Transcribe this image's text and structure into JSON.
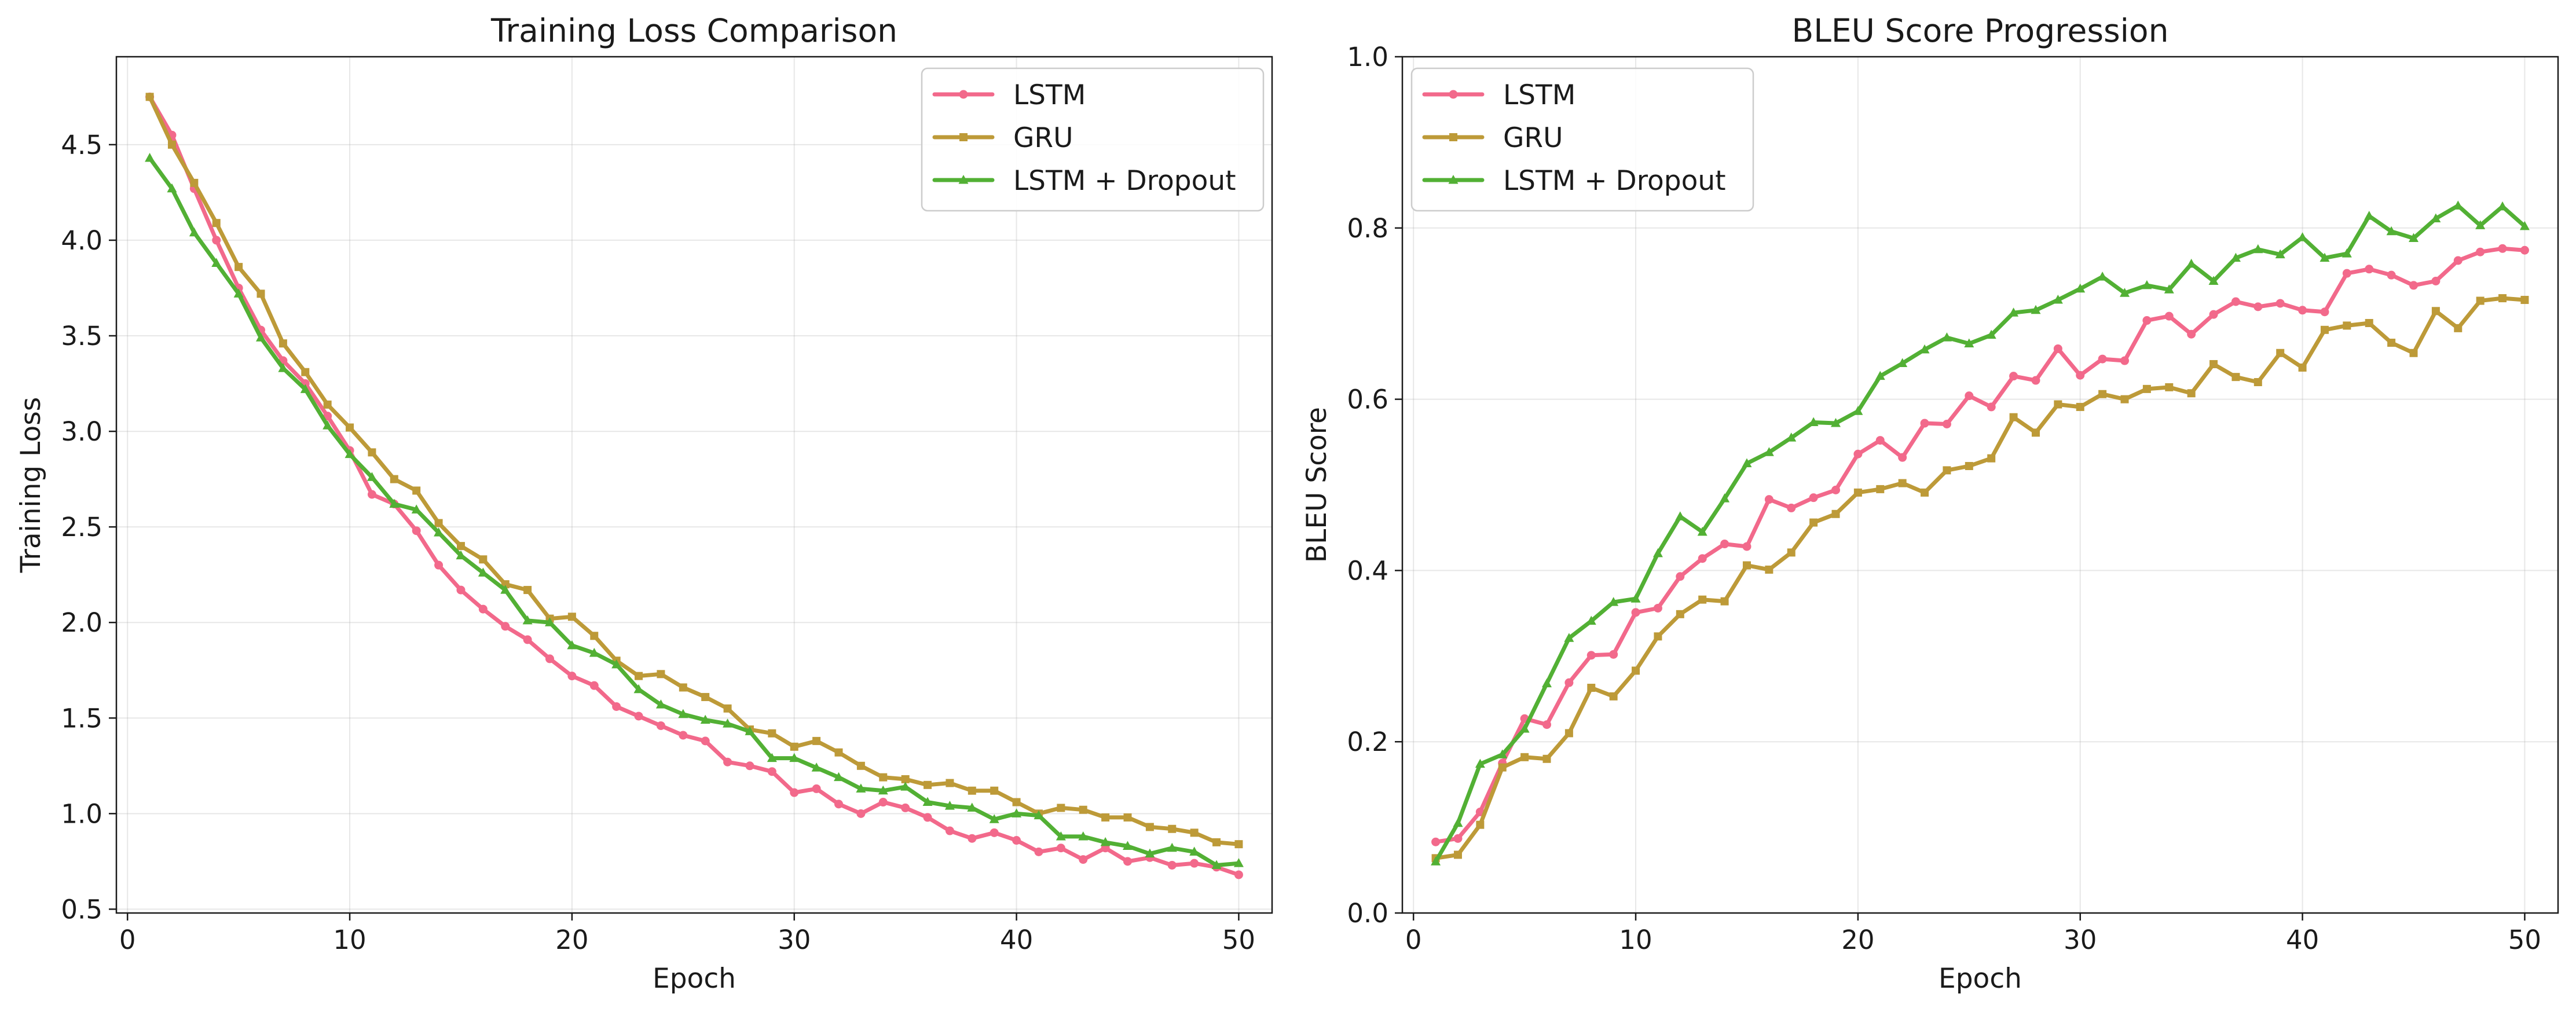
{
  "chart_data": [
    {
      "type": "line",
      "title": "Training Loss Comparison",
      "xlabel": "Epoch",
      "ylabel": "Training Loss",
      "xlim": [
        -0.5,
        51.5
      ],
      "ylim": [
        0.48,
        4.96
      ],
      "xticks": [
        0,
        10,
        20,
        30,
        40,
        50
      ],
      "yticks": [
        0.5,
        1.0,
        1.5,
        2.0,
        2.5,
        3.0,
        3.5,
        4.0,
        4.5
      ],
      "tick_decimals": 1,
      "grid": true,
      "legend": "upper right",
      "x": [
        1,
        2,
        3,
        4,
        5,
        6,
        7,
        8,
        9,
        10,
        11,
        12,
        13,
        14,
        15,
        16,
        17,
        18,
        19,
        20,
        21,
        22,
        23,
        24,
        25,
        26,
        27,
        28,
        29,
        30,
        31,
        32,
        33,
        34,
        35,
        36,
        37,
        38,
        39,
        40,
        41,
        42,
        43,
        44,
        45,
        46,
        47,
        48,
        49,
        50
      ],
      "series": [
        {
          "name": "LSTM",
          "color": "#f2698b",
          "marker": "circle",
          "values": [
            4.75,
            4.55,
            4.27,
            4.0,
            3.75,
            3.53,
            3.37,
            3.25,
            3.08,
            2.9,
            2.67,
            2.62,
            2.48,
            2.3,
            2.17,
            2.07,
            1.98,
            1.91,
            1.81,
            1.72,
            1.67,
            1.56,
            1.51,
            1.46,
            1.41,
            1.38,
            1.27,
            1.25,
            1.22,
            1.11,
            1.13,
            1.05,
            1.0,
            1.06,
            1.03,
            0.98,
            0.91,
            0.87,
            0.9,
            0.86,
            0.8,
            0.82,
            0.76,
            0.82,
            0.75,
            0.77,
            0.73,
            0.74,
            0.72,
            0.68
          ]
        },
        {
          "name": "GRU",
          "color": "#bd9a38",
          "marker": "square",
          "values": [
            4.75,
            4.5,
            4.3,
            4.09,
            3.86,
            3.72,
            3.46,
            3.31,
            3.14,
            3.02,
            2.89,
            2.75,
            2.69,
            2.52,
            2.4,
            2.33,
            2.2,
            2.17,
            2.02,
            2.03,
            1.93,
            1.8,
            1.72,
            1.73,
            1.66,
            1.61,
            1.55,
            1.44,
            1.42,
            1.35,
            1.38,
            1.32,
            1.25,
            1.19,
            1.18,
            1.15,
            1.16,
            1.12,
            1.12,
            1.06,
            1.0,
            1.03,
            1.02,
            0.98,
            0.98,
            0.93,
            0.92,
            0.9,
            0.85,
            0.84
          ]
        },
        {
          "name": "LSTM + Dropout",
          "color": "#52b034",
          "marker": "triangle",
          "values": [
            4.43,
            4.27,
            4.04,
            3.88,
            3.72,
            3.49,
            3.33,
            3.22,
            3.03,
            2.88,
            2.76,
            2.62,
            2.59,
            2.47,
            2.35,
            2.26,
            2.17,
            2.01,
            2.0,
            1.88,
            1.84,
            1.78,
            1.65,
            1.57,
            1.52,
            1.49,
            1.47,
            1.43,
            1.29,
            1.29,
            1.24,
            1.19,
            1.13,
            1.12,
            1.14,
            1.06,
            1.04,
            1.03,
            0.97,
            1.0,
            0.99,
            0.88,
            0.88,
            0.85,
            0.83,
            0.79,
            0.82,
            0.8,
            0.73,
            0.74
          ]
        }
      ]
    },
    {
      "type": "line",
      "title": "BLEU Score Progression",
      "xlabel": "Epoch",
      "ylabel": "BLEU Score",
      "xlim": [
        -0.5,
        51.5
      ],
      "ylim": [
        0.0,
        1.0
      ],
      "xticks": [
        0,
        10,
        20,
        30,
        40,
        50
      ],
      "yticks": [
        0.0,
        0.2,
        0.4,
        0.6,
        0.8,
        1.0
      ],
      "tick_decimals": 1,
      "grid": true,
      "legend": "upper left",
      "x": [
        1,
        2,
        3,
        4,
        5,
        6,
        7,
        8,
        9,
        10,
        11,
        12,
        13,
        14,
        15,
        16,
        17,
        18,
        19,
        20,
        21,
        22,
        23,
        24,
        25,
        26,
        27,
        28,
        29,
        30,
        31,
        32,
        33,
        34,
        35,
        36,
        37,
        38,
        39,
        40,
        41,
        42,
        43,
        44,
        45,
        46,
        47,
        48,
        49,
        50
      ],
      "series": [
        {
          "name": "LSTM",
          "color": "#f2698b",
          "marker": "circle",
          "values": [
            0.083,
            0.087,
            0.118,
            0.175,
            0.227,
            0.22,
            0.269,
            0.301,
            0.302,
            0.351,
            0.356,
            0.393,
            0.414,
            0.431,
            0.428,
            0.483,
            0.473,
            0.485,
            0.494,
            0.536,
            0.552,
            0.532,
            0.572,
            0.571,
            0.604,
            0.591,
            0.627,
            0.622,
            0.659,
            0.628,
            0.647,
            0.645,
            0.692,
            0.697,
            0.676,
            0.699,
            0.714,
            0.708,
            0.712,
            0.704,
            0.702,
            0.747,
            0.752,
            0.745,
            0.733,
            0.738,
            0.762,
            0.772,
            0.776,
            0.774
          ]
        },
        {
          "name": "GRU",
          "color": "#bd9a38",
          "marker": "square",
          "values": [
            0.064,
            0.068,
            0.103,
            0.17,
            0.182,
            0.18,
            0.21,
            0.263,
            0.253,
            0.283,
            0.323,
            0.349,
            0.366,
            0.364,
            0.406,
            0.401,
            0.421,
            0.456,
            0.466,
            0.491,
            0.495,
            0.502,
            0.491,
            0.517,
            0.522,
            0.531,
            0.579,
            0.561,
            0.594,
            0.591,
            0.606,
            0.6,
            0.612,
            0.614,
            0.607,
            0.641,
            0.626,
            0.62,
            0.654,
            0.637,
            0.681,
            0.686,
            0.689,
            0.666,
            0.654,
            0.703,
            0.683,
            0.715,
            0.718,
            0.716
          ]
        },
        {
          "name": "LSTM + Dropout",
          "color": "#52b034",
          "marker": "triangle",
          "values": [
            0.06,
            0.105,
            0.174,
            0.185,
            0.215,
            0.268,
            0.321,
            0.341,
            0.363,
            0.367,
            0.42,
            0.463,
            0.445,
            0.484,
            0.525,
            0.538,
            0.555,
            0.573,
            0.572,
            0.586,
            0.627,
            0.642,
            0.658,
            0.672,
            0.665,
            0.675,
            0.701,
            0.704,
            0.716,
            0.729,
            0.743,
            0.724,
            0.733,
            0.728,
            0.758,
            0.738,
            0.765,
            0.775,
            0.769,
            0.789,
            0.765,
            0.77,
            0.814,
            0.796,
            0.788,
            0.811,
            0.826,
            0.803,
            0.825,
            0.802
          ]
        }
      ]
    }
  ]
}
